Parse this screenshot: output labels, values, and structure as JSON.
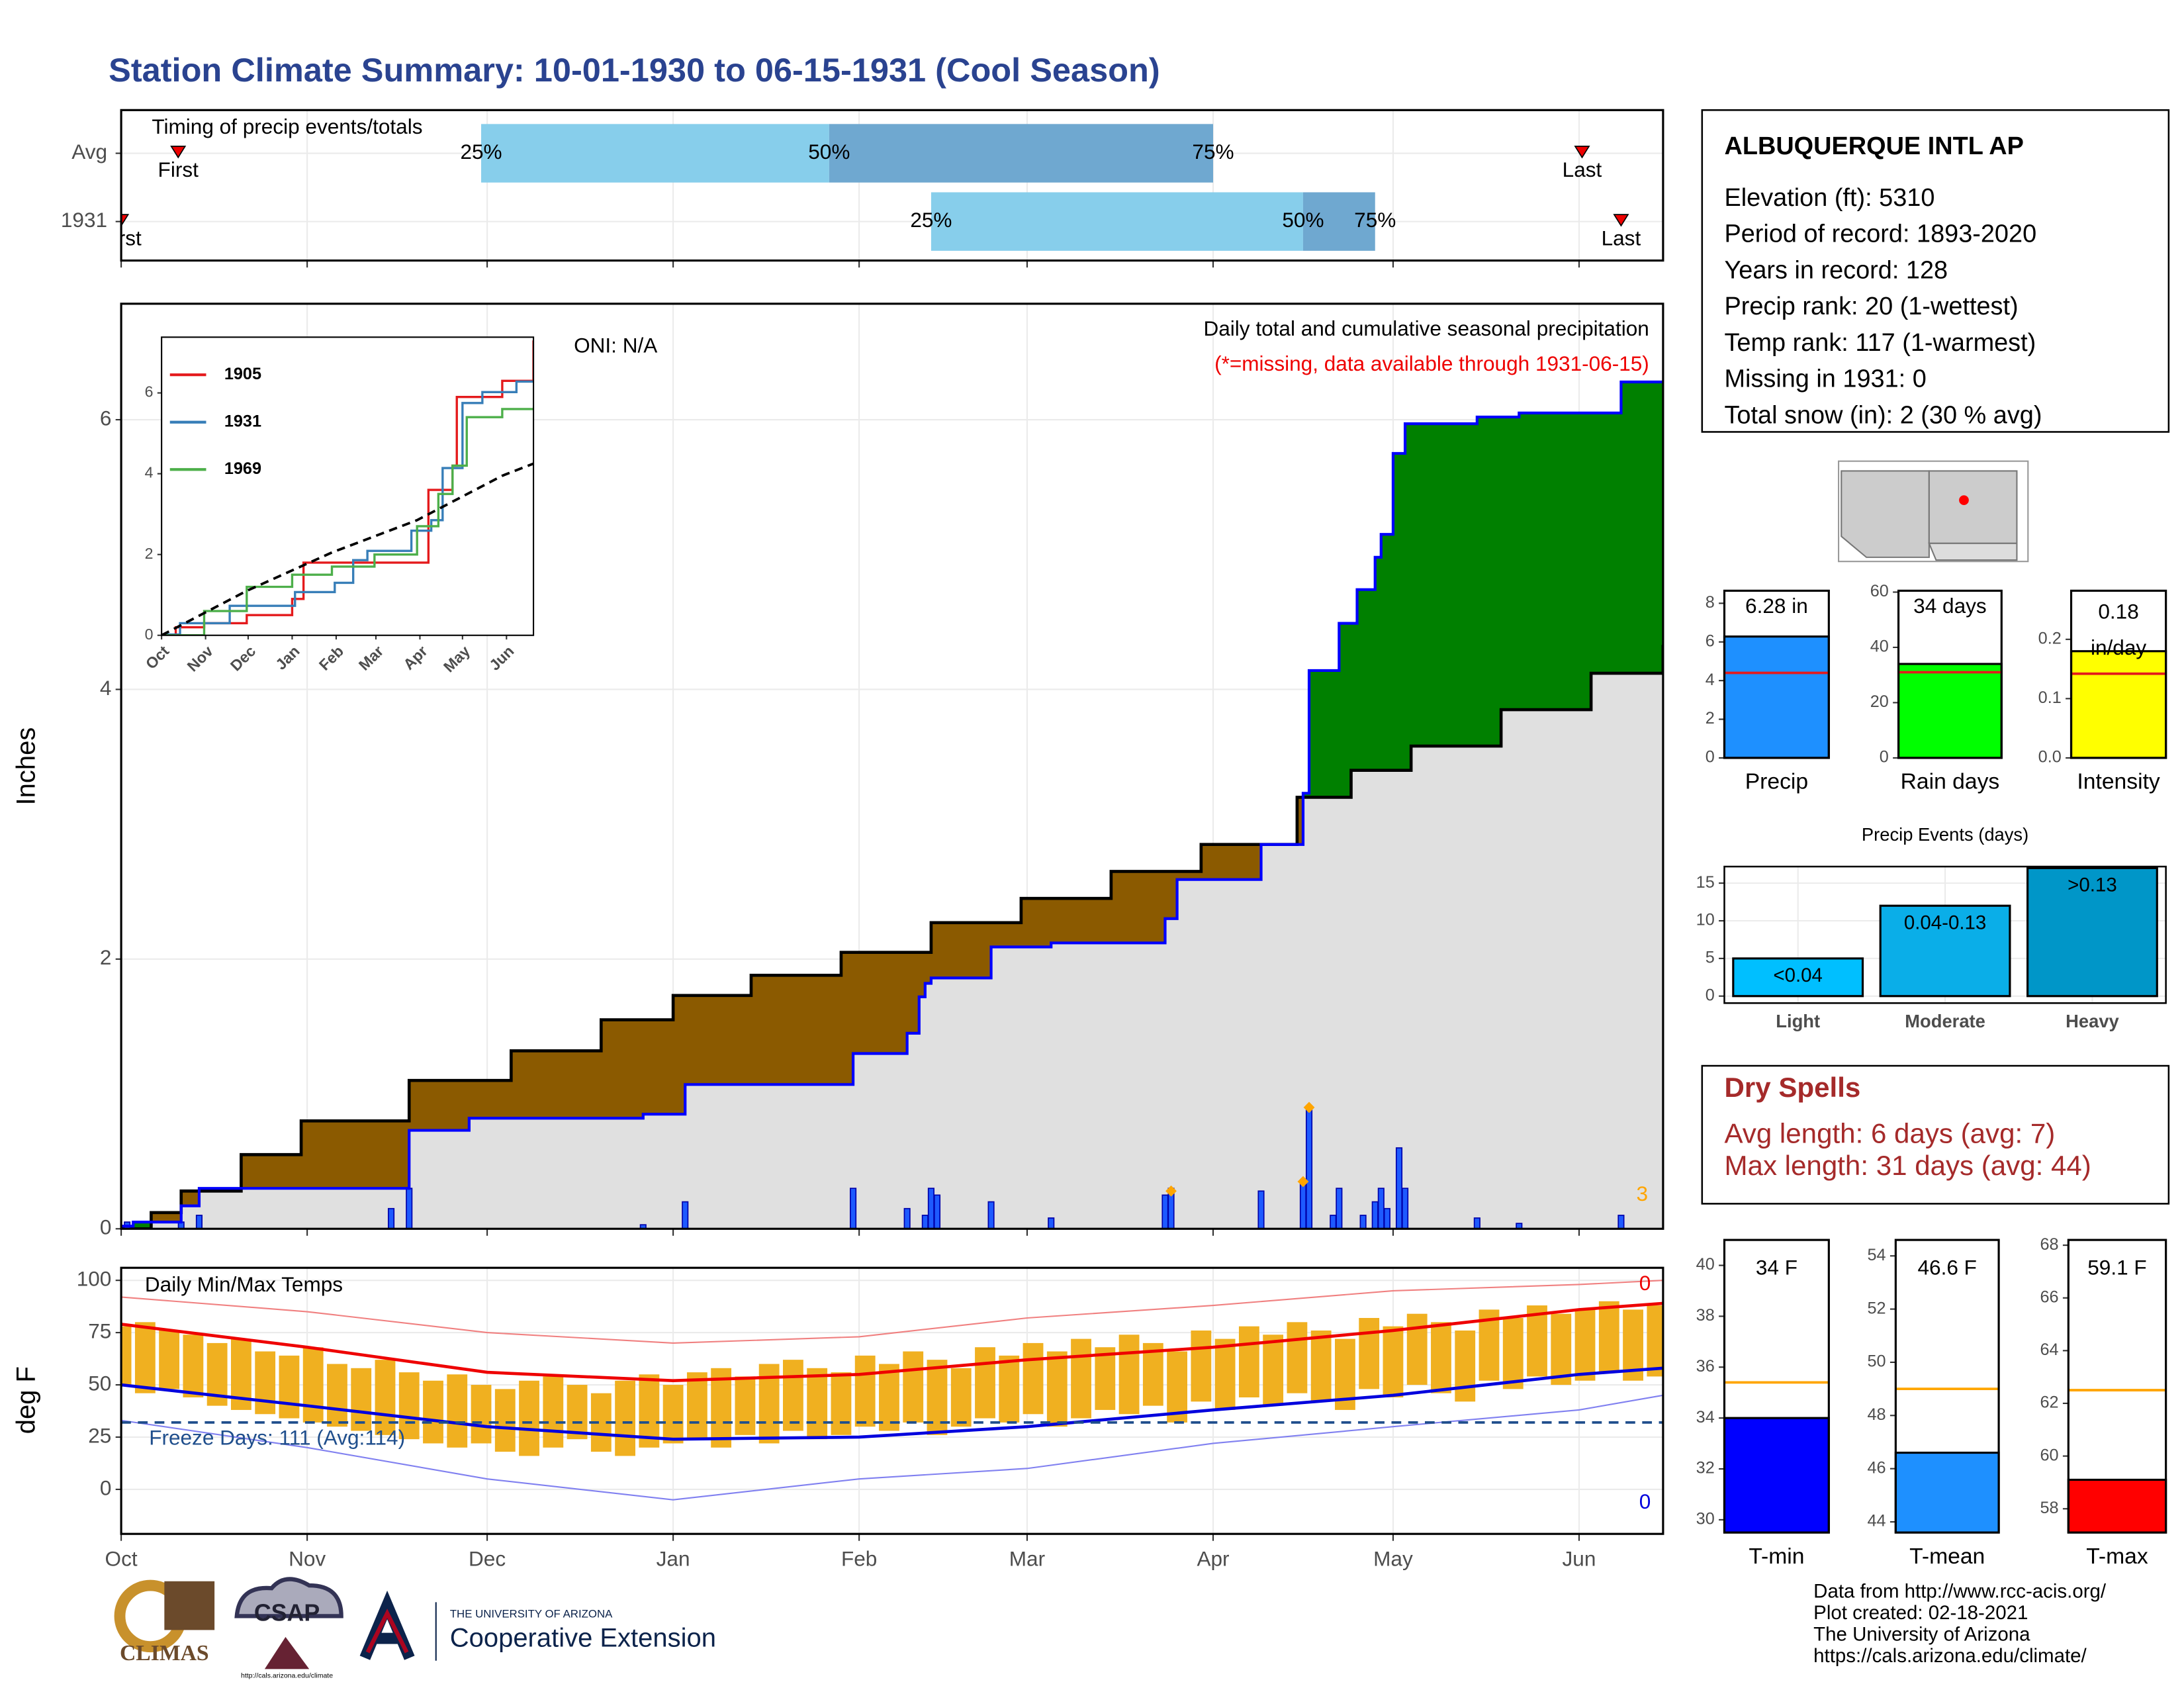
{
  "title": "Station Climate Summary: 10-01-1930 to 06-15-1931 (Cool Season)",
  "info": {
    "name": "ALBUQUERQUE INTL AP",
    "lines": [
      "Elevation (ft): 5310",
      "Period of record: 1893-2020",
      "Years in record: 128",
      "Precip rank: 20 (1-wettest)",
      "Temp rank: 117 (1-warmest)",
      "Missing in 1931: 0",
      "Total snow (in): 2 (30 % avg)"
    ]
  },
  "dry_spells": {
    "title": "Dry Spells",
    "lines": [
      "Avg length: 6 days (avg: 7)",
      "Max length: 31 days (avg: 44)"
    ]
  },
  "footer": [
    "Data from http://www.rcc-acis.org/",
    "Plot created: 02-18-2021",
    "The University of Arizona",
    "https://cals.arizona.edu/climate/"
  ],
  "logos": [
    "CLIMAS",
    "CSAP",
    "THE UNIVERSITY OF ARIZONA",
    "Cooperative Extension",
    "http://cals.arizona.edu/climate"
  ],
  "chart_data": [
    {
      "type": "timeline",
      "title": "Timing of precip events/totals",
      "categories": [
        "Avg",
        "1931"
      ],
      "xlim": [
        0,
        257
      ],
      "rows": [
        {
          "first": 9.5,
          "p25": 60,
          "p50": 118,
          "p75": 182,
          "last": 243.5
        },
        {
          "first": 0,
          "p25": 135,
          "p50": 197,
          "p75": 209,
          "last": 250
        }
      ],
      "pct_labels": [
        "25%",
        "50%",
        "75%"
      ],
      "first_label": "First",
      "last_label": "Last",
      "colors": [
        "#87ceeb",
        "#6fa8d0"
      ]
    },
    {
      "type": "cumulative",
      "ylabel": "Inches",
      "xlim": [
        0,
        257
      ],
      "ylim": [
        0,
        6.86
      ],
      "yticks": [
        0,
        2,
        4,
        6
      ],
      "annotations": [
        "ONI: N/A",
        "Daily total and cumulative seasonal precipitation",
        "(*=missing, data available through 1931-06-15)",
        "3"
      ],
      "observed": {
        "x": [
          0,
          2,
          10,
          13,
          48,
          58,
          87,
          94,
          122,
          131,
          133,
          134,
          135,
          145,
          155,
          174,
          176,
          190,
          197,
          198,
          203,
          206,
          209,
          210,
          212,
          214,
          226,
          233,
          250,
          257
        ],
        "values": [
          0.02,
          0.05,
          0.17,
          0.3,
          0.73,
          0.82,
          0.85,
          1.07,
          1.3,
          1.45,
          1.72,
          1.82,
          1.86,
          2.09,
          2.12,
          2.3,
          2.59,
          2.85,
          3.23,
          4.14,
          4.49,
          4.74,
          4.98,
          5.15,
          5.75,
          5.97,
          6.02,
          6.05,
          6.28,
          6.28
        ]
      },
      "average": {
        "x": [
          0,
          5,
          10,
          20,
          30,
          48,
          65,
          80,
          92,
          105,
          120,
          135,
          150,
          165,
          180,
          196,
          205,
          215,
          230,
          245,
          257
        ],
        "values": [
          0,
          0.12,
          0.28,
          0.55,
          0.8,
          1.1,
          1.32,
          1.55,
          1.73,
          1.88,
          2.05,
          2.27,
          2.45,
          2.65,
          2.85,
          3.2,
          3.4,
          3.58,
          3.85,
          4.12,
          4.33
        ]
      },
      "daily": {
        "x": [
          1,
          10,
          13,
          45,
          48,
          87,
          94,
          122,
          131,
          134,
          135,
          136,
          145,
          155,
          174,
          175,
          190,
          197,
          198,
          202,
          203,
          207,
          209,
          210,
          211,
          213,
          214,
          226,
          233,
          250
        ],
        "values": [
          0.05,
          0.05,
          0.1,
          0.15,
          0.3,
          0.03,
          0.2,
          0.3,
          0.15,
          0.1,
          0.3,
          0.25,
          0.2,
          0.08,
          0.25,
          0.3,
          0.28,
          0.35,
          0.9,
          0.1,
          0.3,
          0.1,
          0.2,
          0.3,
          0.15,
          0.6,
          0.3,
          0.08,
          0.04,
          0.1
        ]
      },
      "accumulated": {
        "x": [
          175,
          197,
          198
        ],
        "values": [
          0.28,
          0.35,
          0.9
        ]
      },
      "colors": {
        "above": "#008000",
        "below": "#8b5a00",
        "base": "#e0e0e0",
        "line": "#0000ff",
        "bar": "#1e5aff"
      }
    },
    {
      "type": "line",
      "xlim": [
        0,
        262
      ],
      "ylim": [
        0,
        7.38
      ],
      "yticks": [
        0,
        2,
        4,
        6
      ],
      "xticks": [
        {
          "value": 0,
          "label": "Oct"
        },
        {
          "value": 31,
          "label": "Nov"
        },
        {
          "value": 61,
          "label": "Dec"
        },
        {
          "value": 92,
          "label": "Jan"
        },
        {
          "value": 123,
          "label": "Feb"
        },
        {
          "value": 151,
          "label": "Mar"
        },
        {
          "value": 182,
          "label": "Apr"
        },
        {
          "value": 212,
          "label": "May"
        },
        {
          "value": 243,
          "label": "Jun"
        }
      ],
      "series": [
        {
          "name": "1905",
          "color": "#e41a1c",
          "x": [
            0,
            10,
            30,
            60,
            92,
            100,
            150,
            185,
            188,
            205,
            208,
            240,
            262
          ],
          "values": [
            0,
            0.2,
            0.3,
            0.5,
            0.9,
            1.8,
            1.8,
            1.8,
            3.6,
            4.2,
            5.9,
            6.3,
            7.3
          ]
        },
        {
          "name": "1931",
          "color": "#377eb8",
          "x": [
            0,
            13,
            48,
            94,
            122,
            135,
            145,
            176,
            190,
            198,
            212,
            226,
            250,
            262
          ],
          "values": [
            0.02,
            0.3,
            0.73,
            1.07,
            1.3,
            1.86,
            2.09,
            2.59,
            2.85,
            4.14,
            5.75,
            6.02,
            6.28,
            6.28
          ]
        },
        {
          "name": "1969",
          "color": "#4daf4a",
          "x": [
            0,
            30,
            60,
            92,
            120,
            150,
            180,
            195,
            205,
            215,
            240,
            262
          ],
          "values": [
            0,
            0.6,
            1.2,
            1.5,
            1.7,
            2.0,
            2.7,
            3.5,
            4.2,
            5.4,
            5.6,
            5.6
          ]
        },
        {
          "color": "#000000",
          "dashed": true,
          "x": [
            0,
            60,
            120,
            180,
            240,
            262
          ],
          "values": [
            0,
            1.1,
            2.05,
            2.85,
            3.95,
            4.25
          ]
        }
      ]
    },
    {
      "type": "temperature",
      "ylabel": "deg F",
      "title": "Daily Min/Max Temps",
      "xlim": [
        0,
        257
      ],
      "ylim": [
        -21.3,
        106
      ],
      "yticks": [
        0,
        25,
        50,
        75,
        100
      ],
      "xticks": [
        {
          "value": 0,
          "label": "Oct"
        },
        {
          "value": 31,
          "label": "Nov"
        },
        {
          "value": 61,
          "label": "Dec"
        },
        {
          "value": 92,
          "label": "Jan"
        },
        {
          "value": 123,
          "label": "Feb"
        },
        {
          "value": 151,
          "label": "Mar"
        },
        {
          "value": 182,
          "label": "Apr"
        },
        {
          "value": 212,
          "label": "May"
        },
        {
          "value": 243,
          "label": "Jun"
        }
      ],
      "freeze": 32,
      "annotations": [
        "Freeze Days: 111 (Avg:114)",
        "0",
        "0"
      ],
      "days": [
        0,
        4,
        8,
        12,
        16,
        20,
        24,
        28,
        32,
        36,
        40,
        44,
        48,
        52,
        56,
        60,
        64,
        68,
        72,
        76,
        80,
        84,
        88,
        92,
        96,
        100,
        104,
        108,
        112,
        116,
        120,
        124,
        128,
        132,
        136,
        140,
        144,
        148,
        152,
        156,
        160,
        164,
        168,
        172,
        176,
        180,
        184,
        188,
        192,
        196,
        200,
        204,
        208,
        212,
        216,
        220,
        224,
        228,
        232,
        236,
        240,
        244,
        248,
        252,
        256
      ],
      "max": [
        78,
        80,
        76,
        74,
        70,
        72,
        66,
        64,
        68,
        60,
        58,
        62,
        56,
        52,
        55,
        50,
        48,
        52,
        54,
        50,
        46,
        52,
        55,
        50,
        56,
        58,
        54,
        60,
        62,
        58,
        56,
        64,
        60,
        66,
        62,
        58,
        68,
        64,
        70,
        66,
        72,
        68,
        74,
        70,
        66,
        76,
        72,
        78,
        74,
        80,
        76,
        72,
        82,
        78,
        84,
        80,
        76,
        86,
        82,
        88,
        84,
        86,
        90,
        86,
        88
      ],
      "min": [
        50,
        46,
        48,
        44,
        40,
        38,
        36,
        34,
        32,
        30,
        28,
        26,
        24,
        22,
        20,
        22,
        18,
        16,
        20,
        24,
        18,
        16,
        20,
        22,
        24,
        20,
        26,
        22,
        28,
        24,
        26,
        30,
        28,
        32,
        26,
        30,
        34,
        32,
        36,
        30,
        34,
        38,
        36,
        40,
        32,
        42,
        38,
        44,
        40,
        46,
        42,
        38,
        48,
        44,
        50,
        46,
        42,
        52,
        48,
        54,
        50,
        52,
        56,
        52,
        54
      ],
      "normal_x": [
        0,
        31,
        61,
        92,
        123,
        151,
        182,
        212,
        243,
        257
      ],
      "normal_max": [
        79,
        68,
        56,
        52,
        55,
        62,
        68,
        76,
        86,
        89
      ],
      "normal_min": [
        50,
        40,
        30,
        24,
        25,
        30,
        38,
        45,
        55,
        58
      ],
      "record_max": [
        92,
        85,
        75,
        70,
        73,
        82,
        88,
        95,
        98,
        100
      ],
      "record_min": [
        33,
        20,
        5,
        -5,
        5,
        10,
        22,
        30,
        38,
        45
      ]
    },
    {
      "type": "bar",
      "xlabel": "Precip",
      "value": 6.28,
      "value_label": "6.28 in",
      "avg": 4.4,
      "ylim": [
        0,
        8.65
      ],
      "yticks": [
        0,
        2,
        4,
        6,
        8
      ],
      "color": "#1e90ff",
      "avg_color": "#e41a1c"
    },
    {
      "type": "bar",
      "xlabel": "Rain days",
      "value": 34,
      "value_label": "34 days",
      "avg": 31,
      "ylim": [
        0,
        60.5
      ],
      "yticks": [
        0,
        20,
        40,
        60
      ],
      "color": "#00ff00",
      "avg_color": "#e41a1c"
    },
    {
      "type": "bar",
      "xlabel": "Intensity",
      "value": 0.18,
      "value_label": [
        "0.18",
        "in/day"
      ],
      "avg": 0.142,
      "ylim": [
        0,
        0.282
      ],
      "yticks": [
        {
          "value": 0,
          "label": "0.0"
        },
        0.1,
        0.2
      ],
      "color": "#ffff00",
      "avg_color": "#e41a1c"
    },
    {
      "type": "events",
      "title": "Precip Events (days)",
      "categories": [
        "Light",
        "Moderate",
        "Heavy"
      ],
      "values": [
        5,
        12,
        17
      ],
      "value_labels": [
        "<0.04",
        "0.04-0.13",
        ">0.13"
      ],
      "colors": [
        "#00bfff",
        "#0aaee8",
        "#0096c8"
      ],
      "ylim": [
        -0.93,
        17.2
      ],
      "yticks": [
        0,
        5,
        10,
        15
      ],
      "grid": true
    },
    {
      "type": "bar",
      "xlabel": "T-min",
      "value": 34,
      "value_label": "34 F",
      "avg": 35.4,
      "ylim": [
        29.5,
        41
      ],
      "yticks": [
        30,
        32,
        34,
        36,
        38,
        40
      ],
      "color": "#0000ff",
      "avg_color": "#ffa500"
    },
    {
      "type": "bar",
      "xlabel": "T-mean",
      "value": 46.6,
      "value_label": "46.6 F",
      "avg": 49,
      "ylim": [
        43.6,
        54.6
      ],
      "yticks": [
        44,
        46,
        48,
        50,
        52,
        54
      ],
      "color": "#1e90ff",
      "avg_color": "#ffa500"
    },
    {
      "type": "bar",
      "xlabel": "T-max",
      "value": 59.1,
      "value_label": "59.1 F",
      "avg": 62.5,
      "ylim": [
        57.1,
        68.2
      ],
      "yticks": [
        58,
        60,
        62,
        64,
        66,
        68
      ],
      "color": "#ff0000",
      "avg_color": "#ffa500"
    }
  ]
}
